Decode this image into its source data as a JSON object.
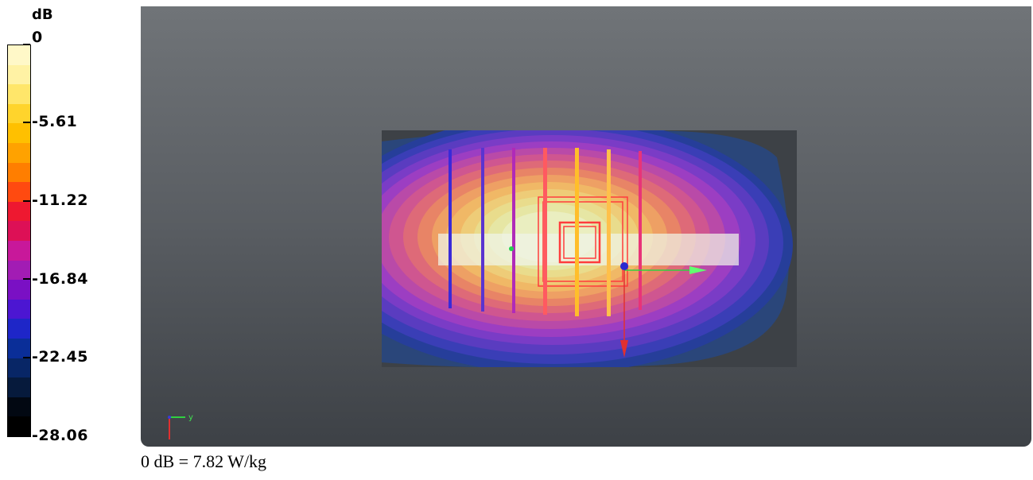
{
  "legend": {
    "unit": "dB",
    "ticks": [
      "0",
      "-5.61",
      "-11.22",
      "-16.84",
      "-22.45",
      "-28.06"
    ],
    "bands": [
      "#fff8c8",
      "#fff2a4",
      "#ffe66a",
      "#ffd42c",
      "#ffc000",
      "#ffa200",
      "#ff7e00",
      "#ff4a10",
      "#ee1830",
      "#dd1056",
      "#c8189a",
      "#a21cb4",
      "#7a10c4",
      "#4c16d2",
      "#1e26c8",
      "#0a2e98",
      "#082666",
      "#061a3c",
      "#020812",
      "#000000"
    ]
  },
  "axes_triad": {
    "y_label": "y"
  },
  "caption": "0 dB = 7.82 W/kg"
}
